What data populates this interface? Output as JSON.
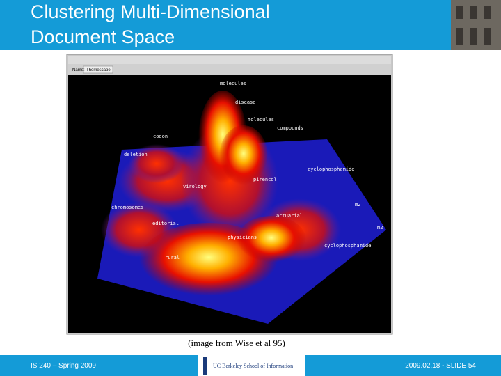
{
  "header": {
    "title_lines": [
      "Clustering Multi-Dimensional",
      "Document Space"
    ]
  },
  "figure": {
    "tab_label": "Name:",
    "tab_value": "Themescape",
    "labels": [
      "molecules",
      "disease",
      "molecules",
      "compounds",
      "codon",
      "deletion",
      "cyclophosphamide",
      "pirencol",
      "virology",
      "chromosomes",
      "m2",
      "actuarial",
      "editorial",
      "m2",
      "physicians",
      "cyclophosphamide",
      "rural"
    ],
    "caption": "(image from Wise et al 95)"
  },
  "footer": {
    "left": "IS 240 – Spring 2009",
    "logo": "UC Berkeley School of Information",
    "right": "2009.02.18 - SLIDE 54"
  }
}
